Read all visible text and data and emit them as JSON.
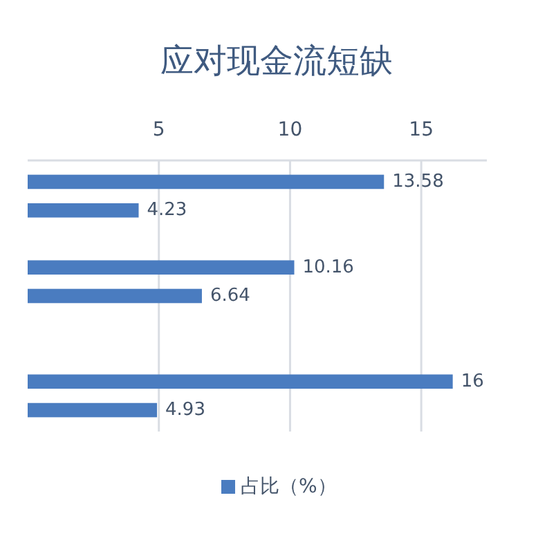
{
  "chart_data": {
    "type": "bar",
    "orientation": "horizontal",
    "title": "应对现金流短缺",
    "categories": [
      null,
      null,
      null,
      null,
      null,
      null,
      null,
      null,
      null
    ],
    "series": [
      {
        "name": "占比（%）",
        "color": "#4a7cc0",
        "values": [
          13.58,
          4.23,
          null,
          10.16,
          6.64,
          null,
          null,
          16.2,
          4.93
        ]
      }
    ],
    "value_labels": [
      "13.58",
      "4.23",
      null,
      "10.16",
      "6.64",
      null,
      null,
      "16",
      "4.93"
    ],
    "xlim": [
      0,
      17.5
    ],
    "xticks": [
      5,
      10,
      15
    ],
    "grid": "x",
    "legend": "bottom"
  }
}
